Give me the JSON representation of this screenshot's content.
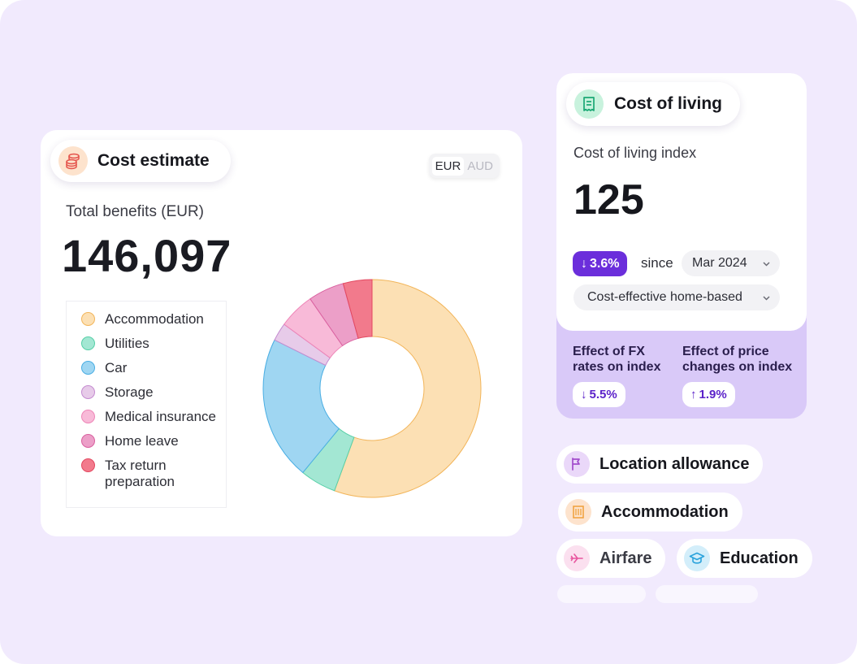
{
  "cost_estimate": {
    "title": "Cost estimate",
    "icon": "coins-icon",
    "currencies": [
      "EUR",
      "AUD"
    ],
    "selected_currency": "EUR",
    "total_label": "Total benefits (EUR)",
    "total_value": "146,097"
  },
  "chart_data": {
    "type": "pie",
    "style": "donut",
    "title": "",
    "categories": [
      "Accommodation",
      "Utilities",
      "Car",
      "Storage",
      "Medical insurance",
      "Home leave",
      "Tax return\npreparation"
    ],
    "values": [
      52,
      5,
      20,
      2.5,
      5,
      5,
      4
    ],
    "unit": "%",
    "colors": {
      "fill": [
        "#fce0b4",
        "#a3e7d3",
        "#9fd6f2",
        "#e7cbe9",
        "#f8bad8",
        "#ec9fc8",
        "#f27a8c"
      ],
      "stroke": [
        "#f2b55a",
        "#56cfa7",
        "#4aaee3",
        "#c48bd0",
        "#ee85b7",
        "#d9609f",
        "#e34860"
      ]
    },
    "legend_position": "left"
  },
  "cost_of_living": {
    "title": "Cost of living",
    "icon": "receipt-icon",
    "index_label": "Cost of living index",
    "index_value": "125",
    "change": "3.6%",
    "change_direction": "down",
    "since_label": "since",
    "month": "Mar 2024",
    "basis": "Cost-effective home-based",
    "fx_effect_label": "Effect of FX\nrates on index",
    "fx_effect_value": "5.5%",
    "fx_effect_direction": "down",
    "price_effect_label": "Effect of price\nchanges on index",
    "price_effect_value": "1.9%",
    "price_effect_direction": "up"
  },
  "features": [
    {
      "label": "Location allowance",
      "icon": "flag-icon"
    },
    {
      "label": "Accommodation",
      "icon": "building-icon"
    },
    {
      "label": "Airfare",
      "icon": "plane-icon"
    },
    {
      "label": "Education",
      "icon": "graduation-cap-icon"
    }
  ],
  "colors": {
    "background": "#f1eafd",
    "accent": "#6b2edb",
    "effect_panel": "#d9c9f8"
  }
}
